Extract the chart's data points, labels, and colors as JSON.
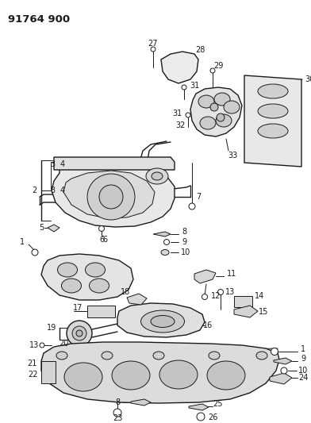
{
  "title": "91764 900",
  "background_color": "#ffffff",
  "line_color": "#1a1a1a",
  "figsize": [
    3.92,
    5.33
  ],
  "dpi": 100
}
